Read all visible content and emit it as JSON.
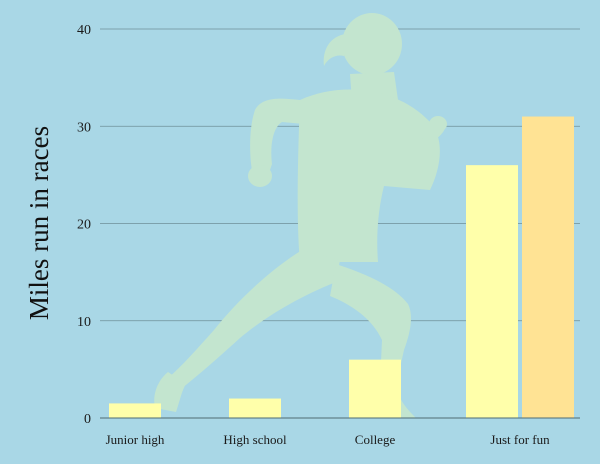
{
  "chart_data": {
    "type": "bar",
    "title": "",
    "xlabel": "",
    "ylabel": "Miles run in races",
    "categories": [
      "Junior high",
      "High school",
      "College",
      "Just for fun"
    ],
    "ylim": [
      0,
      40
    ],
    "yticks": [
      0,
      10,
      20,
      30,
      40
    ],
    "grid": true,
    "legend": "none",
    "series": [
      {
        "values": [
          1.5,
          2,
          6,
          26
        ],
        "color": "#ffffaa"
      },
      {
        "values": [
          null,
          null,
          null,
          31
        ],
        "color": "#ffe394"
      }
    ]
  },
  "colors": {
    "background": "#a9d7e6",
    "gridline": "#6f8f98",
    "silhouette": "#c3e5cf"
  },
  "decoration": {
    "silhouette_icon": "running-woman-icon"
  }
}
